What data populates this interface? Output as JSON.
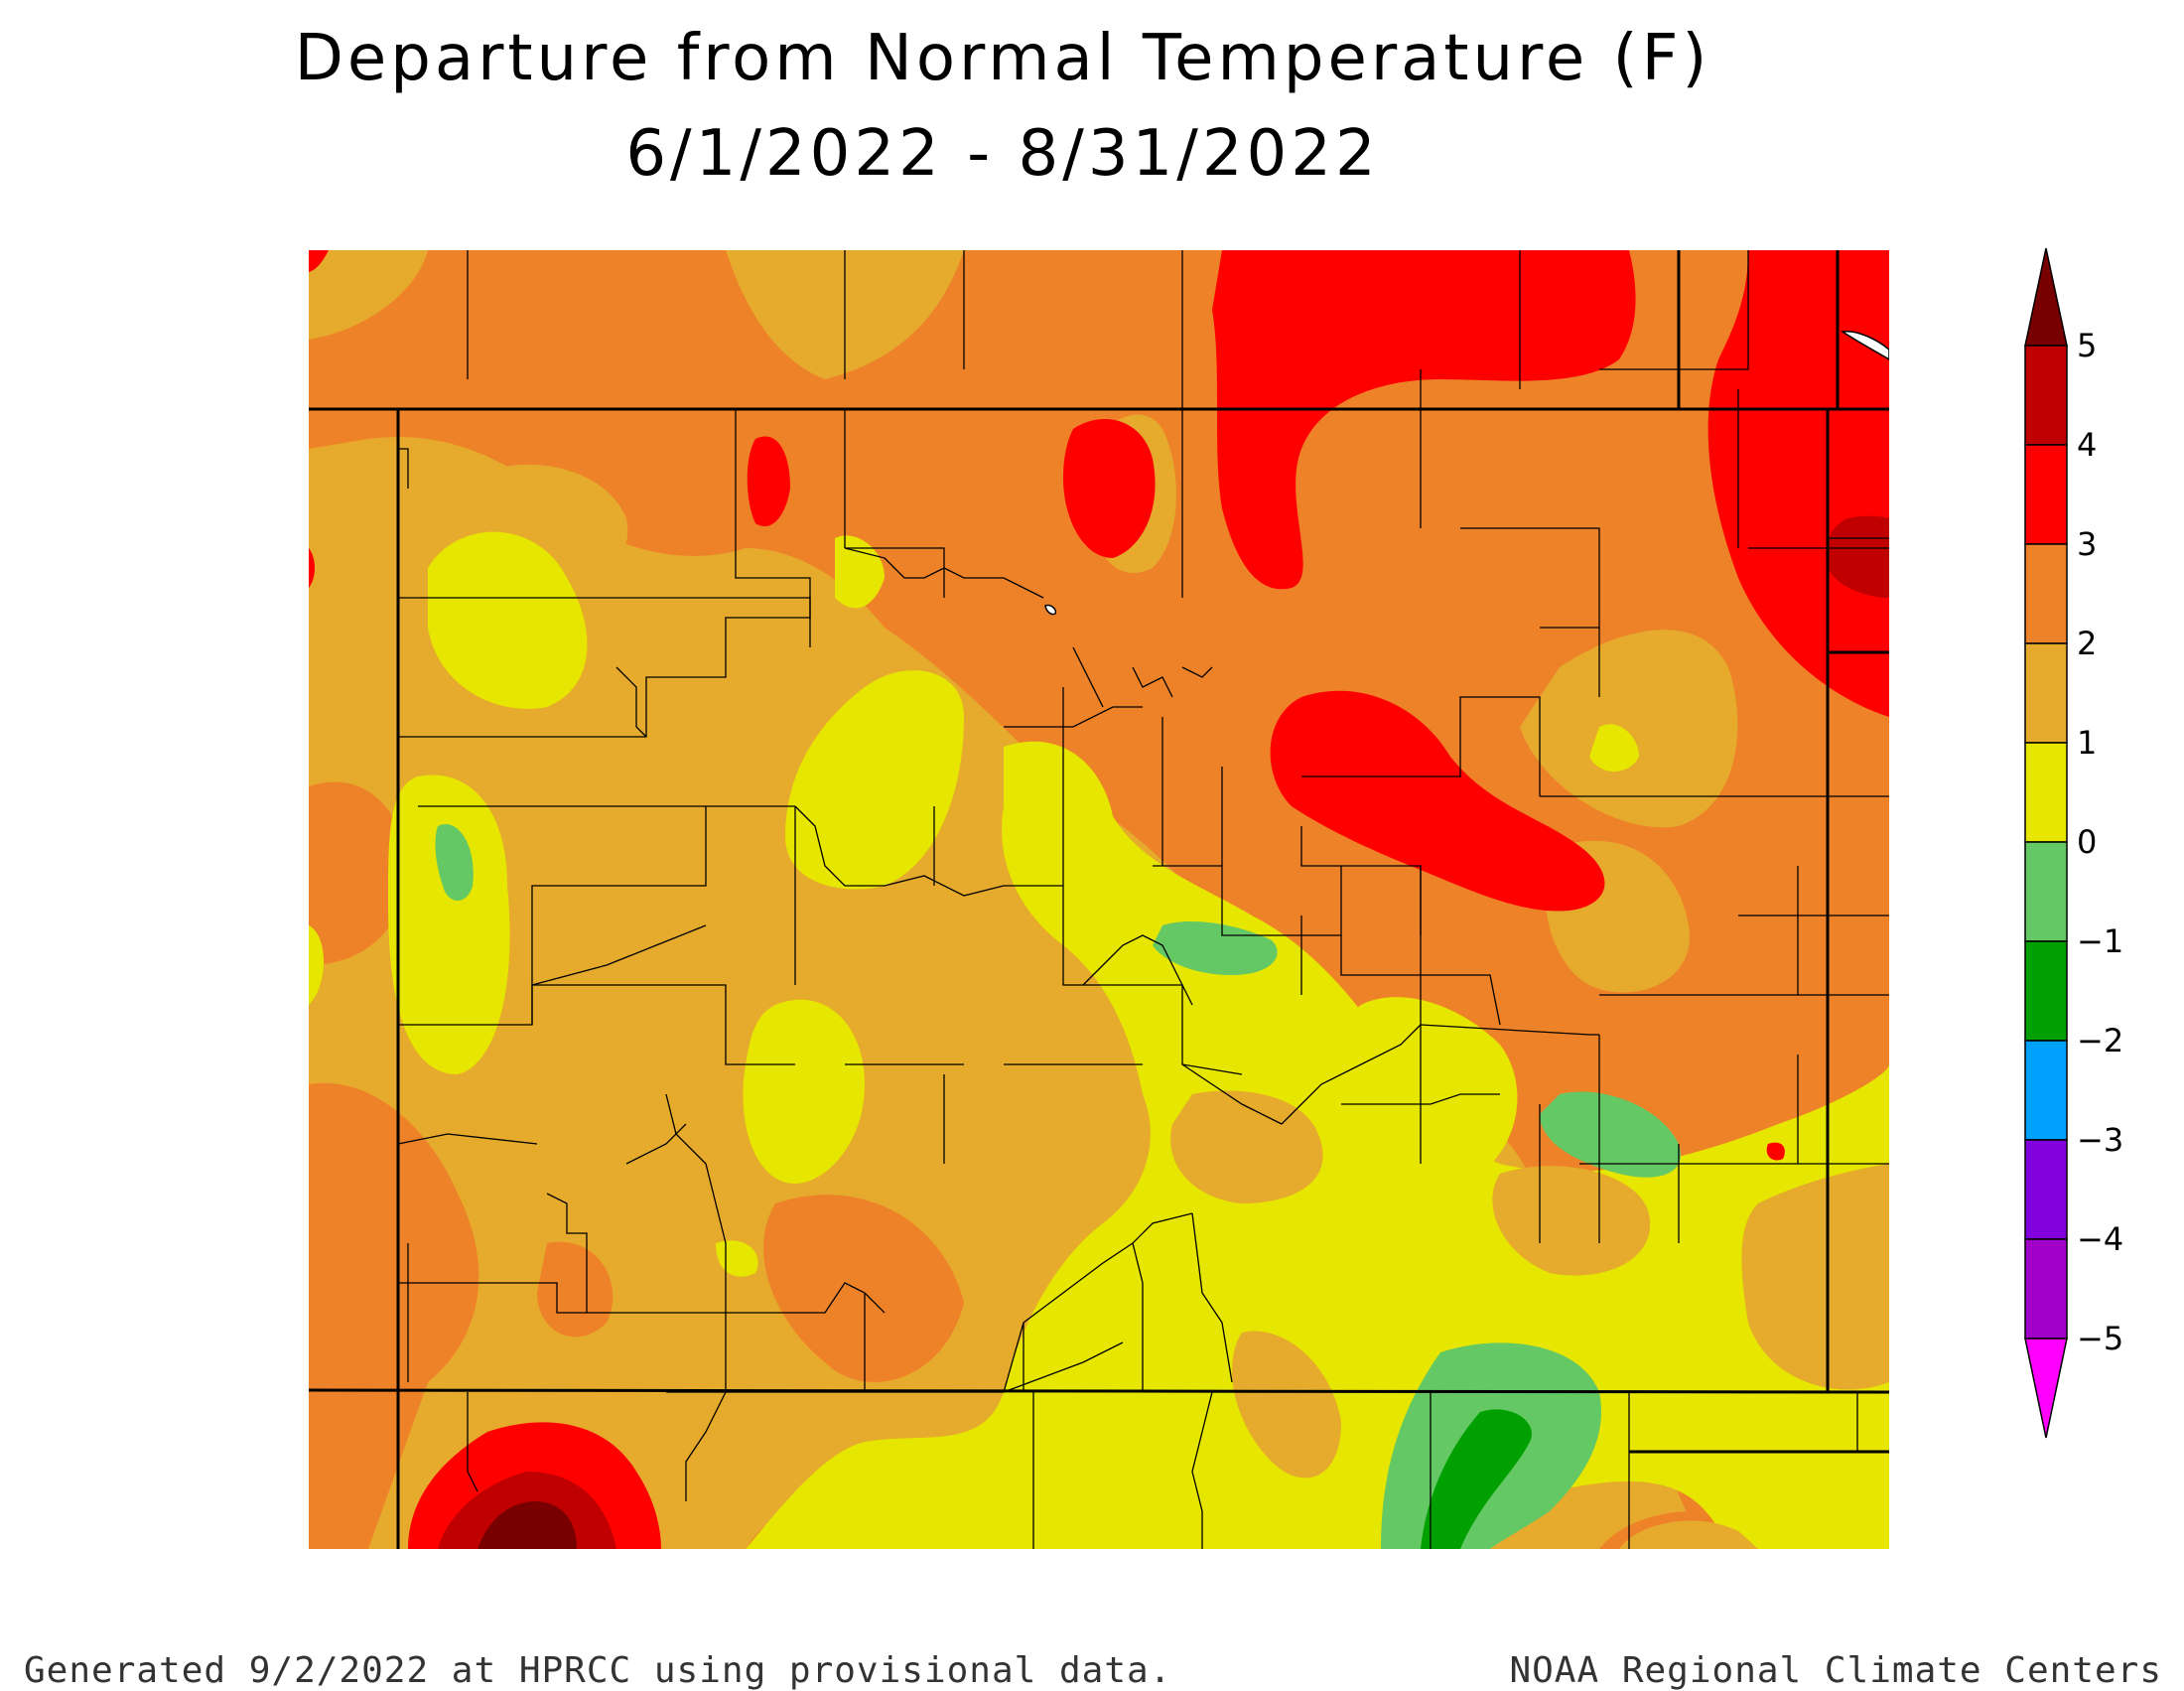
{
  "title": "Departure from Normal Temperature (F)",
  "date_range": "6/1/2022 - 8/31/2022",
  "footer": {
    "left": "Generated 9/2/2022 at HPRCC using provisional data.",
    "right": "NOAA Regional Climate Centers"
  },
  "legend": {
    "labels": [
      "5",
      "4",
      "3",
      "2",
      "1",
      "0",
      "−1",
      "−2",
      "−3",
      "−4",
      "−5"
    ],
    "colors": [
      "#780000",
      "#c00000",
      "#ff0000",
      "#ee8228",
      "#e6aa2d",
      "#e6e600",
      "#64c864",
      "#00a000",
      "#00a0ff",
      "#8200dc",
      "#a000c8",
      "#ff00ff"
    ]
  },
  "map": {
    "state": "Colorado",
    "background_color": "#e6aa2d"
  }
}
